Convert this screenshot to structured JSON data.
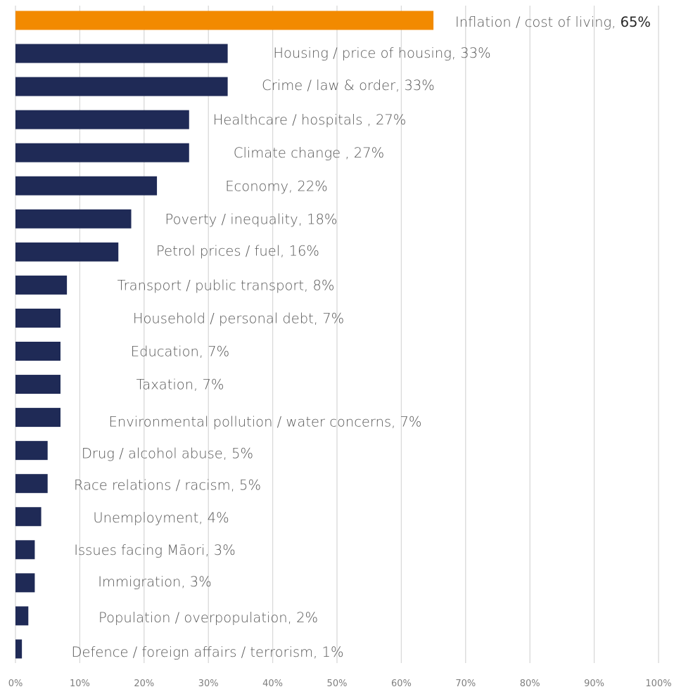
{
  "chart_data": {
    "type": "bar",
    "orientation": "horizontal",
    "categories": [
      "Inflation / cost of living",
      "Housing / price of housing",
      "Crime / law & order",
      "Healthcare / hospitals ",
      "Climate change ",
      "Economy",
      "Poverty / inequality",
      "Petrol prices / fuel",
      "Transport / public transport",
      "Household / personal debt",
      "Education",
      "Taxation",
      "Environmental pollution / water concerns",
      "Drug / alcohol abuse",
      "Race relations / racism",
      "Unemployment",
      "Issues facing Māori",
      "Immigration",
      "Population / overpopulation",
      "Defence / foreign affairs / terrorism"
    ],
    "values": [
      65,
      33,
      33,
      27,
      27,
      22,
      18,
      16,
      8,
      7,
      7,
      7,
      7,
      5,
      5,
      4,
      3,
      3,
      2,
      1
    ],
    "value_suffix": "%",
    "labels": [
      "Inflation / cost of living, 65%",
      "Housing / price of housing, 33%",
      "Crime / law & order, 33%",
      "Healthcare / hospitals , 27%",
      "Climate change , 27%",
      "Economy, 22%",
      "Poverty / inequality, 18%",
      "Petrol prices / fuel, 16%",
      "Transport / public transport, 8%",
      "Household / personal debt, 7%",
      "Education, 7%",
      "Taxation, 7%",
      "Environmental pollution / water concerns, 7%",
      "Drug / alcohol abuse, 5%",
      "Race relations / racism, 5%",
      "Unemployment, 4%",
      "Issues facing Māori, 3%",
      "Immigration, 3%",
      "Population / overpopulation, 2%",
      "Defence / foreign affairs / terrorism, 1%"
    ],
    "highlight_index": 0,
    "xlim": [
      0,
      100
    ],
    "x_ticks": [
      "0%",
      "10%",
      "20%",
      "30%",
      "40%",
      "50%",
      "60%",
      "70%",
      "80%",
      "90%",
      "100%"
    ],
    "grid": "vertical",
    "legend": "none",
    "title": "",
    "xlabel": "",
    "ylabel": "",
    "colors": {
      "default_bar": "#1f2a56",
      "highlight_bar": "#f28a00",
      "grid": "#d9d9d9"
    }
  }
}
